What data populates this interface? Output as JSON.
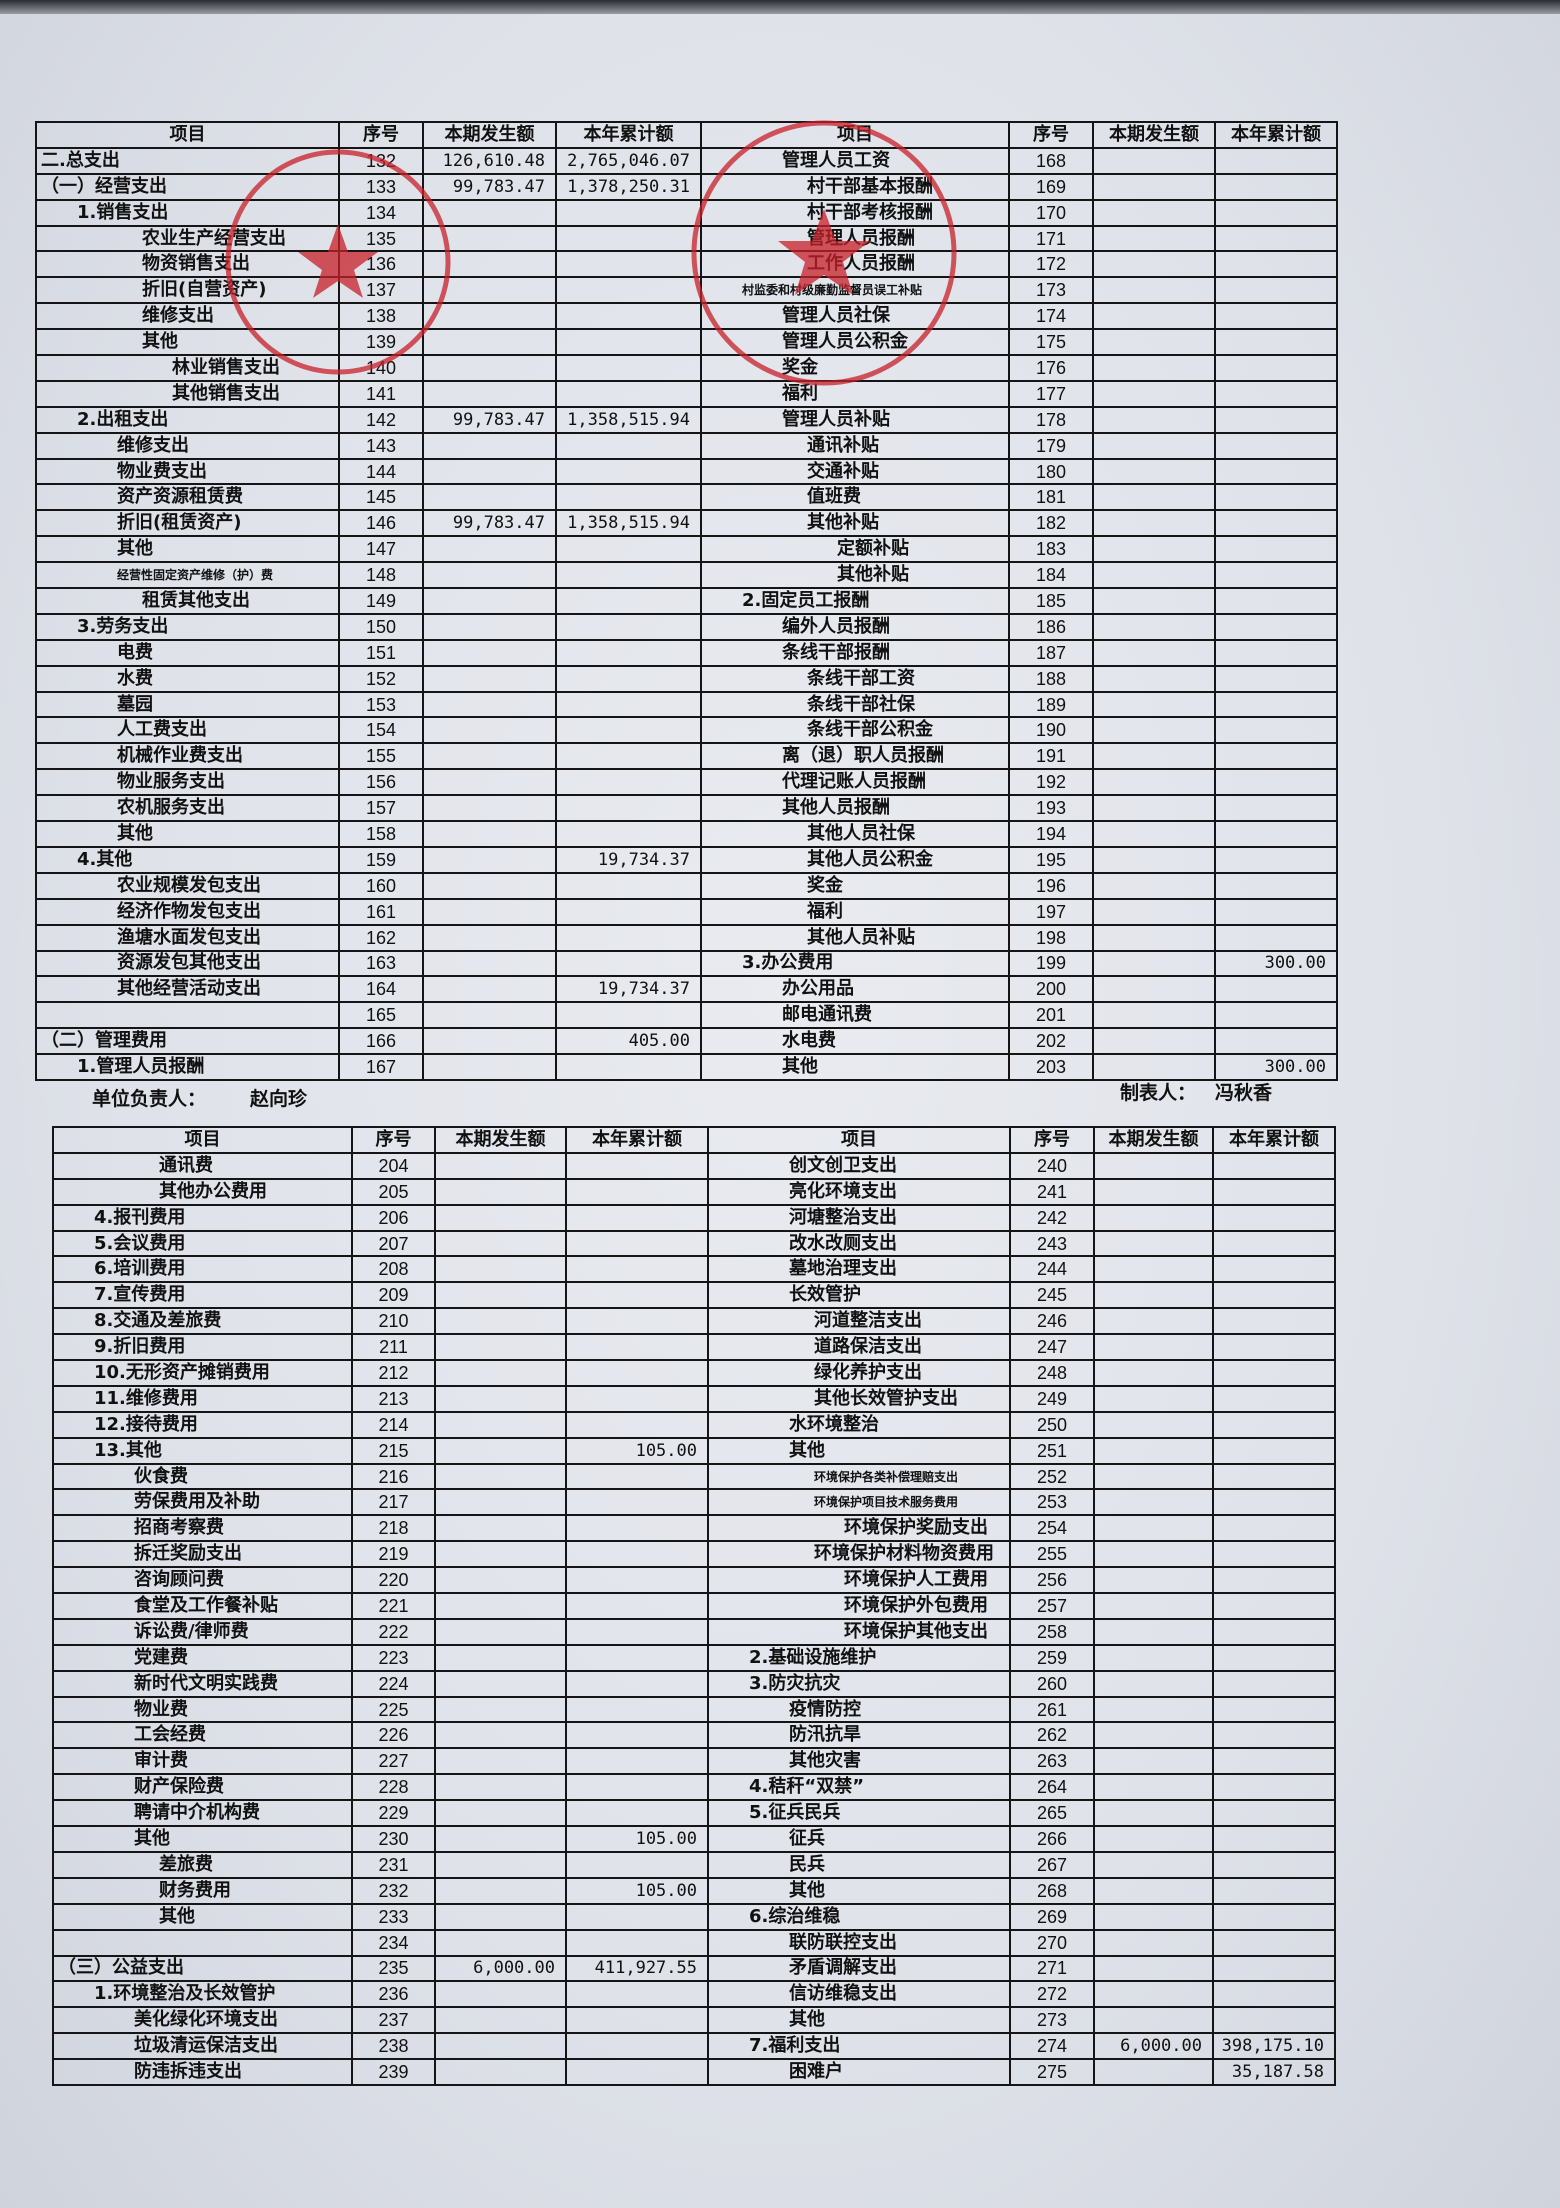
{
  "headers": {
    "item": "项目",
    "seq": "序号",
    "current": "本期发生额",
    "ytd": "本年累计额"
  },
  "footer": {
    "unit_head_label": "单位负责人：",
    "unit_head_name": "赵向珍",
    "preparer_label": "制表人：",
    "preparer_name": "冯秋香"
  },
  "stamp_color": "#c8202a",
  "top_left": [
    {
      "item": "二.总支出",
      "seq": "132",
      "cur": "126,610.48",
      "ytd": "2,765,046.07",
      "level": 0
    },
    {
      "item": "（一）经营支出",
      "seq": "133",
      "cur": "99,783.47",
      "ytd": "1,378,250.31",
      "level": 0
    },
    {
      "item": "1.销售支出",
      "seq": "134",
      "cur": "",
      "ytd": "",
      "level": 1
    },
    {
      "item": "农业生产经营支出",
      "seq": "135",
      "cur": "",
      "ytd": "",
      "level": 3
    },
    {
      "item": "物资销售支出",
      "seq": "136",
      "cur": "",
      "ytd": "",
      "level": 3
    },
    {
      "item": "折旧(自营资产)",
      "seq": "137",
      "cur": "",
      "ytd": "",
      "level": 3
    },
    {
      "item": "维修支出",
      "seq": "138",
      "cur": "",
      "ytd": "",
      "level": 3
    },
    {
      "item": "其他",
      "seq": "139",
      "cur": "",
      "ytd": "",
      "level": 3
    },
    {
      "item": "林业销售支出",
      "seq": "140",
      "cur": "",
      "ytd": "",
      "level": 4
    },
    {
      "item": "其他销售支出",
      "seq": "141",
      "cur": "",
      "ytd": "",
      "level": 4
    },
    {
      "item": "2.出租支出",
      "seq": "142",
      "cur": "99,783.47",
      "ytd": "1,358,515.94",
      "level": 1
    },
    {
      "item": "维修支出",
      "seq": "143",
      "cur": "",
      "ytd": "",
      "level": 2
    },
    {
      "item": "物业费支出",
      "seq": "144",
      "cur": "",
      "ytd": "",
      "level": 2
    },
    {
      "item": "资产资源租赁费",
      "seq": "145",
      "cur": "",
      "ytd": "",
      "level": 2
    },
    {
      "item": "折旧(租赁资产)",
      "seq": "146",
      "cur": "99,783.47",
      "ytd": "1,358,515.94",
      "level": 2
    },
    {
      "item": "其他",
      "seq": "147",
      "cur": "",
      "ytd": "",
      "level": 2
    },
    {
      "item": "经营性固定资产维修（护）费",
      "seq": "148",
      "cur": "",
      "ytd": "",
      "level": 2,
      "small": true
    },
    {
      "item": "租赁其他支出",
      "seq": "149",
      "cur": "",
      "ytd": "",
      "level": 3
    },
    {
      "item": "3.劳务支出",
      "seq": "150",
      "cur": "",
      "ytd": "",
      "level": 1
    },
    {
      "item": "电费",
      "seq": "151",
      "cur": "",
      "ytd": "",
      "level": 2
    },
    {
      "item": "水费",
      "seq": "152",
      "cur": "",
      "ytd": "",
      "level": 2
    },
    {
      "item": "墓园",
      "seq": "153",
      "cur": "",
      "ytd": "",
      "level": 2
    },
    {
      "item": "人工费支出",
      "seq": "154",
      "cur": "",
      "ytd": "",
      "level": 2
    },
    {
      "item": "机械作业费支出",
      "seq": "155",
      "cur": "",
      "ytd": "",
      "level": 2
    },
    {
      "item": "物业服务支出",
      "seq": "156",
      "cur": "",
      "ytd": "",
      "level": 2
    },
    {
      "item": "农机服务支出",
      "seq": "157",
      "cur": "",
      "ytd": "",
      "level": 2
    },
    {
      "item": "其他",
      "seq": "158",
      "cur": "",
      "ytd": "",
      "level": 2
    },
    {
      "item": "4.其他",
      "seq": "159",
      "cur": "",
      "ytd": "19,734.37",
      "level": 1
    },
    {
      "item": "农业规模发包支出",
      "seq": "160",
      "cur": "",
      "ytd": "",
      "level": 2
    },
    {
      "item": "经济作物发包支出",
      "seq": "161",
      "cur": "",
      "ytd": "",
      "level": 2
    },
    {
      "item": "渔塘水面发包支出",
      "seq": "162",
      "cur": "",
      "ytd": "",
      "level": 2
    },
    {
      "item": "资源发包其他支出",
      "seq": "163",
      "cur": "",
      "ytd": "",
      "level": 2
    },
    {
      "item": "其他经营活动支出",
      "seq": "164",
      "cur": "",
      "ytd": "19,734.37",
      "level": 2
    },
    {
      "item": "",
      "seq": "165",
      "cur": "",
      "ytd": "",
      "level": 0
    },
    {
      "item": "（二）管理费用",
      "seq": "166",
      "cur": "",
      "ytd": "405.00",
      "level": 0
    },
    {
      "item": "1.管理人员报酬",
      "seq": "167",
      "cur": "",
      "ytd": "",
      "level": 1
    }
  ],
  "top_right": [
    {
      "item": "管理人员工资",
      "seq": "168",
      "cur": "",
      "ytd": "",
      "level": 2
    },
    {
      "item": "村干部基本报酬",
      "seq": "169",
      "cur": "",
      "ytd": "",
      "level": 3
    },
    {
      "item": "村干部考核报酬",
      "seq": "170",
      "cur": "",
      "ytd": "",
      "level": 3
    },
    {
      "item": "管理人员报酬",
      "seq": "171",
      "cur": "",
      "ytd": "",
      "level": 3
    },
    {
      "item": "工作人员报酬",
      "seq": "172",
      "cur": "",
      "ytd": "",
      "level": 3
    },
    {
      "item": "村监委和村级廉勤监督员误工补贴",
      "seq": "173",
      "cur": "",
      "ytd": "",
      "level": 1,
      "small": true
    },
    {
      "item": "管理人员社保",
      "seq": "174",
      "cur": "",
      "ytd": "",
      "level": 2
    },
    {
      "item": "管理人员公积金",
      "seq": "175",
      "cur": "",
      "ytd": "",
      "level": 2
    },
    {
      "item": "奖金",
      "seq": "176",
      "cur": "",
      "ytd": "",
      "level": 2
    },
    {
      "item": "福利",
      "seq": "177",
      "cur": "",
      "ytd": "",
      "level": 2
    },
    {
      "item": "管理人员补贴",
      "seq": "178",
      "cur": "",
      "ytd": "",
      "level": 2
    },
    {
      "item": "通讯补贴",
      "seq": "179",
      "cur": "",
      "ytd": "",
      "level": 3
    },
    {
      "item": "交通补贴",
      "seq": "180",
      "cur": "",
      "ytd": "",
      "level": 3
    },
    {
      "item": "值班费",
      "seq": "181",
      "cur": "",
      "ytd": "",
      "level": 3
    },
    {
      "item": "其他补贴",
      "seq": "182",
      "cur": "",
      "ytd": "",
      "level": 3
    },
    {
      "item": "定额补贴",
      "seq": "183",
      "cur": "",
      "ytd": "",
      "level": 4
    },
    {
      "item": "其他补贴",
      "seq": "184",
      "cur": "",
      "ytd": "",
      "level": 4
    },
    {
      "item": "2.固定员工报酬",
      "seq": "185",
      "cur": "",
      "ytd": "",
      "level": 1
    },
    {
      "item": "编外人员报酬",
      "seq": "186",
      "cur": "",
      "ytd": "",
      "level": 2
    },
    {
      "item": "条线干部报酬",
      "seq": "187",
      "cur": "",
      "ytd": "",
      "level": 2
    },
    {
      "item": "条线干部工资",
      "seq": "188",
      "cur": "",
      "ytd": "",
      "level": 3
    },
    {
      "item": "条线干部社保",
      "seq": "189",
      "cur": "",
      "ytd": "",
      "level": 3
    },
    {
      "item": "条线干部公积金",
      "seq": "190",
      "cur": "",
      "ytd": "",
      "level": 3
    },
    {
      "item": "离（退）职人员报酬",
      "seq": "191",
      "cur": "",
      "ytd": "",
      "level": 2
    },
    {
      "item": "代理记账人员报酬",
      "seq": "192",
      "cur": "",
      "ytd": "",
      "level": 2
    },
    {
      "item": "其他人员报酬",
      "seq": "193",
      "cur": "",
      "ytd": "",
      "level": 2
    },
    {
      "item": "其他人员社保",
      "seq": "194",
      "cur": "",
      "ytd": "",
      "level": 3
    },
    {
      "item": "其他人员公积金",
      "seq": "195",
      "cur": "",
      "ytd": "",
      "level": 3
    },
    {
      "item": "奖金",
      "seq": "196",
      "cur": "",
      "ytd": "",
      "level": 3
    },
    {
      "item": "福利",
      "seq": "197",
      "cur": "",
      "ytd": "",
      "level": 3
    },
    {
      "item": "其他人员补贴",
      "seq": "198",
      "cur": "",
      "ytd": "",
      "level": 3
    },
    {
      "item": "3.办公费用",
      "seq": "199",
      "cur": "",
      "ytd": "300.00",
      "level": 1
    },
    {
      "item": "办公用品",
      "seq": "200",
      "cur": "",
      "ytd": "",
      "level": 2
    },
    {
      "item": "邮电通讯费",
      "seq": "201",
      "cur": "",
      "ytd": "",
      "level": 2
    },
    {
      "item": "水电费",
      "seq": "202",
      "cur": "",
      "ytd": "",
      "level": 2
    },
    {
      "item": "其他",
      "seq": "203",
      "cur": "",
      "ytd": "300.00",
      "level": 2
    }
  ],
  "bottom_left": [
    {
      "item": "通讯费",
      "seq": "204",
      "cur": "",
      "ytd": "",
      "level": 3
    },
    {
      "item": "其他办公费用",
      "seq": "205",
      "cur": "",
      "ytd": "",
      "level": 3
    },
    {
      "item": "4.报刊费用",
      "seq": "206",
      "cur": "",
      "ytd": "",
      "level": 1
    },
    {
      "item": "5.会议费用",
      "seq": "207",
      "cur": "",
      "ytd": "",
      "level": 1
    },
    {
      "item": "6.培训费用",
      "seq": "208",
      "cur": "",
      "ytd": "",
      "level": 1
    },
    {
      "item": "7.宣传费用",
      "seq": "209",
      "cur": "",
      "ytd": "",
      "level": 1
    },
    {
      "item": "8.交通及差旅费",
      "seq": "210",
      "cur": "",
      "ytd": "",
      "level": 1
    },
    {
      "item": "9.折旧费用",
      "seq": "211",
      "cur": "",
      "ytd": "",
      "level": 1
    },
    {
      "item": "10.无形资产摊销费用",
      "seq": "212",
      "cur": "",
      "ytd": "",
      "level": 1
    },
    {
      "item": "11.维修费用",
      "seq": "213",
      "cur": "",
      "ytd": "",
      "level": 1
    },
    {
      "item": "12.接待费用",
      "seq": "214",
      "cur": "",
      "ytd": "",
      "level": 1
    },
    {
      "item": "13.其他",
      "seq": "215",
      "cur": "",
      "ytd": "105.00",
      "level": 1
    },
    {
      "item": "伙食费",
      "seq": "216",
      "cur": "",
      "ytd": "",
      "level": 2
    },
    {
      "item": "劳保费用及补助",
      "seq": "217",
      "cur": "",
      "ytd": "",
      "level": 2
    },
    {
      "item": "招商考察费",
      "seq": "218",
      "cur": "",
      "ytd": "",
      "level": 2
    },
    {
      "item": "拆迁奖励支出",
      "seq": "219",
      "cur": "",
      "ytd": "",
      "level": 2
    },
    {
      "item": "咨询顾问费",
      "seq": "220",
      "cur": "",
      "ytd": "",
      "level": 2
    },
    {
      "item": "食堂及工作餐补贴",
      "seq": "221",
      "cur": "",
      "ytd": "",
      "level": 2
    },
    {
      "item": "诉讼费/律师费",
      "seq": "222",
      "cur": "",
      "ytd": "",
      "level": 2
    },
    {
      "item": "党建费",
      "seq": "223",
      "cur": "",
      "ytd": "",
      "level": 2
    },
    {
      "item": "新时代文明实践费",
      "seq": "224",
      "cur": "",
      "ytd": "",
      "level": 2
    },
    {
      "item": "物业费",
      "seq": "225",
      "cur": "",
      "ytd": "",
      "level": 2
    },
    {
      "item": "工会经费",
      "seq": "226",
      "cur": "",
      "ytd": "",
      "level": 2
    },
    {
      "item": "审计费",
      "seq": "227",
      "cur": "",
      "ytd": "",
      "level": 2
    },
    {
      "item": "财产保险费",
      "seq": "228",
      "cur": "",
      "ytd": "",
      "level": 2
    },
    {
      "item": "聘请中介机构费",
      "seq": "229",
      "cur": "",
      "ytd": "",
      "level": 2
    },
    {
      "item": "其他",
      "seq": "230",
      "cur": "",
      "ytd": "105.00",
      "level": 2
    },
    {
      "item": "差旅费",
      "seq": "231",
      "cur": "",
      "ytd": "",
      "level": 3
    },
    {
      "item": "财务费用",
      "seq": "232",
      "cur": "",
      "ytd": "105.00",
      "level": 3
    },
    {
      "item": "其他",
      "seq": "233",
      "cur": "",
      "ytd": "",
      "level": 3
    },
    {
      "item": "",
      "seq": "234",
      "cur": "",
      "ytd": "",
      "level": 0
    },
    {
      "item": "（三）公益支出",
      "seq": "235",
      "cur": "6,000.00",
      "ytd": "411,927.55",
      "level": 0
    },
    {
      "item": "1.环境整治及长效管护",
      "seq": "236",
      "cur": "",
      "ytd": "",
      "level": 1
    },
    {
      "item": "美化绿化环境支出",
      "seq": "237",
      "cur": "",
      "ytd": "",
      "level": 2
    },
    {
      "item": "垃圾清运保洁支出",
      "seq": "238",
      "cur": "",
      "ytd": "",
      "level": 2
    },
    {
      "item": "防违拆违支出",
      "seq": "239",
      "cur": "",
      "ytd": "",
      "level": 2
    }
  ],
  "bottom_right": [
    {
      "item": "创文创卫支出",
      "seq": "240",
      "cur": "",
      "ytd": "",
      "level": 2
    },
    {
      "item": "亮化环境支出",
      "seq": "241",
      "cur": "",
      "ytd": "",
      "level": 2
    },
    {
      "item": "河塘整治支出",
      "seq": "242",
      "cur": "",
      "ytd": "",
      "level": 2
    },
    {
      "item": "改水改厕支出",
      "seq": "243",
      "cur": "",
      "ytd": "",
      "level": 2
    },
    {
      "item": "墓地治理支出",
      "seq": "244",
      "cur": "",
      "ytd": "",
      "level": 2
    },
    {
      "item": "长效管护",
      "seq": "245",
      "cur": "",
      "ytd": "",
      "level": 2
    },
    {
      "item": "河道整洁支出",
      "seq": "246",
      "cur": "",
      "ytd": "",
      "level": 3
    },
    {
      "item": "道路保洁支出",
      "seq": "247",
      "cur": "",
      "ytd": "",
      "level": 3
    },
    {
      "item": "绿化养护支出",
      "seq": "248",
      "cur": "",
      "ytd": "",
      "level": 3
    },
    {
      "item": "其他长效管护支出",
      "seq": "249",
      "cur": "",
      "ytd": "",
      "level": 3
    },
    {
      "item": "水环境整治",
      "seq": "250",
      "cur": "",
      "ytd": "",
      "level": 2
    },
    {
      "item": "其他",
      "seq": "251",
      "cur": "",
      "ytd": "",
      "level": 2
    },
    {
      "item": "环境保护各类补偿理赔支出",
      "seq": "252",
      "cur": "",
      "ytd": "",
      "level": 3,
      "small": true
    },
    {
      "item": "环境保护项目技术服务费用",
      "seq": "253",
      "cur": "",
      "ytd": "",
      "level": 3,
      "small": true
    },
    {
      "item": "环境保护奖励支出",
      "seq": "254",
      "cur": "",
      "ytd": "",
      "level": 4
    },
    {
      "item": "环境保护材料物资费用",
      "seq": "255",
      "cur": "",
      "ytd": "",
      "level": 3
    },
    {
      "item": "环境保护人工费用",
      "seq": "256",
      "cur": "",
      "ytd": "",
      "level": 4
    },
    {
      "item": "环境保护外包费用",
      "seq": "257",
      "cur": "",
      "ytd": "",
      "level": 4
    },
    {
      "item": "环境保护其他支出",
      "seq": "258",
      "cur": "",
      "ytd": "",
      "level": 4
    },
    {
      "item": "2.基础设施维护",
      "seq": "259",
      "cur": "",
      "ytd": "",
      "level": 1
    },
    {
      "item": "3.防灾抗灾",
      "seq": "260",
      "cur": "",
      "ytd": "",
      "level": 1
    },
    {
      "item": "疫情防控",
      "seq": "261",
      "cur": "",
      "ytd": "",
      "level": 2
    },
    {
      "item": "防汛抗旱",
      "seq": "262",
      "cur": "",
      "ytd": "",
      "level": 2
    },
    {
      "item": "其他灾害",
      "seq": "263",
      "cur": "",
      "ytd": "",
      "level": 2
    },
    {
      "item": "4.秸秆“双禁”",
      "seq": "264",
      "cur": "",
      "ytd": "",
      "level": 1
    },
    {
      "item": "5.征兵民兵",
      "seq": "265",
      "cur": "",
      "ytd": "",
      "level": 1
    },
    {
      "item": "征兵",
      "seq": "266",
      "cur": "",
      "ytd": "",
      "level": 2
    },
    {
      "item": "民兵",
      "seq": "267",
      "cur": "",
      "ytd": "",
      "level": 2
    },
    {
      "item": "其他",
      "seq": "268",
      "cur": "",
      "ytd": "",
      "level": 2
    },
    {
      "item": "6.综治维稳",
      "seq": "269",
      "cur": "",
      "ytd": "",
      "level": 1
    },
    {
      "item": "联防联控支出",
      "seq": "270",
      "cur": "",
      "ytd": "",
      "level": 2
    },
    {
      "item": "矛盾调解支出",
      "seq": "271",
      "cur": "",
      "ytd": "",
      "level": 2
    },
    {
      "item": "信访维稳支出",
      "seq": "272",
      "cur": "",
      "ytd": "",
      "level": 2
    },
    {
      "item": "其他",
      "seq": "273",
      "cur": "",
      "ytd": "",
      "level": 2
    },
    {
      "item": "7.福利支出",
      "seq": "274",
      "cur": "6,000.00",
      "ytd": "398,175.10",
      "level": 1
    },
    {
      "item": "困难户",
      "seq": "275",
      "cur": "",
      "ytd": "35,187.58",
      "level": 2
    }
  ]
}
